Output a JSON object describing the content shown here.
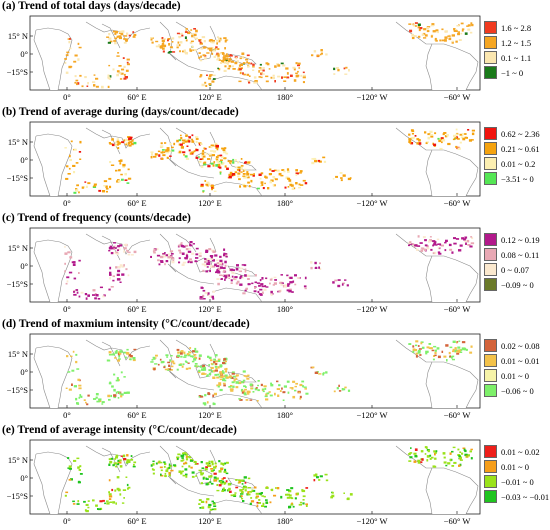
{
  "panels": [
    {
      "title": "(a) Trend of total days (days/decade)",
      "legend": [
        {
          "label": "1.6 ~ 2.8",
          "color": "#f03b20"
        },
        {
          "label": "1.2 ~ 1.5",
          "color": "#f5a623"
        },
        {
          "label": "0.1 ~ 1.1",
          "color": "#fbe7b0"
        },
        {
          "label": "−1 ~ 0",
          "color": "#1a7a1a"
        }
      ],
      "dominant": [
        1,
        2,
        0
      ]
    },
    {
      "title": "(b) Trend of average during (days/count/decade)",
      "legend": [
        {
          "label": "0.62 ~ 2.36",
          "color": "#f0140e"
        },
        {
          "label": "0.21 ~ 0.61",
          "color": "#f5a30f"
        },
        {
          "label": "0.01 ~ 0.2",
          "color": "#fcefb2"
        },
        {
          "label": "−3.51 ~ 0",
          "color": "#55e655"
        }
      ],
      "dominant": [
        1,
        2,
        0
      ]
    },
    {
      "title": "(c) Trend of frequency (counts/decade)",
      "legend": [
        {
          "label": "0.12 ~ 0.19",
          "color": "#b2198b"
        },
        {
          "label": "0.08 ~ 0.11",
          "color": "#e8a8b4"
        },
        {
          "label": "0 ~ 0.07",
          "color": "#fbe9cf"
        },
        {
          "label": "−0.09 ~ 0",
          "color": "#6b7a2a"
        }
      ],
      "dominant": [
        0,
        1,
        2
      ]
    },
    {
      "title": "(d) Trend of maxmium intensity (°C/count/decade)",
      "legend": [
        {
          "label": "0.02 ~ 0.08",
          "color": "#d3633a"
        },
        {
          "label": "0.01 ~ 0.01",
          "color": "#f3c24a"
        },
        {
          "label": "0.01 ~ 0",
          "color": "#f6f3a8"
        },
        {
          "label": "−0.06 ~ 0",
          "color": "#7ef06a"
        }
      ],
      "dominant": [
        3,
        1,
        0
      ]
    },
    {
      "title": "(e) Trend of average intensity (°C/count/decade)",
      "legend": [
        {
          "label": "0.01 ~ 0.02",
          "color": "#ee1f1a"
        },
        {
          "label": "0.01 ~ 0",
          "color": "#f59e1a"
        },
        {
          "label": "−0.01 ~ 0",
          "color": "#9ae21a"
        },
        {
          "label": "−0.03 ~ −0.01",
          "color": "#1fc41f"
        }
      ],
      "dominant": [
        2,
        3,
        1
      ]
    }
  ],
  "axes": {
    "lat_labels": [
      "15° N",
      "0°",
      "−15°S"
    ],
    "lon_labels": [
      "0°",
      "60° E",
      "120° E",
      "180°",
      "−120° W",
      "−60° W"
    ]
  }
}
